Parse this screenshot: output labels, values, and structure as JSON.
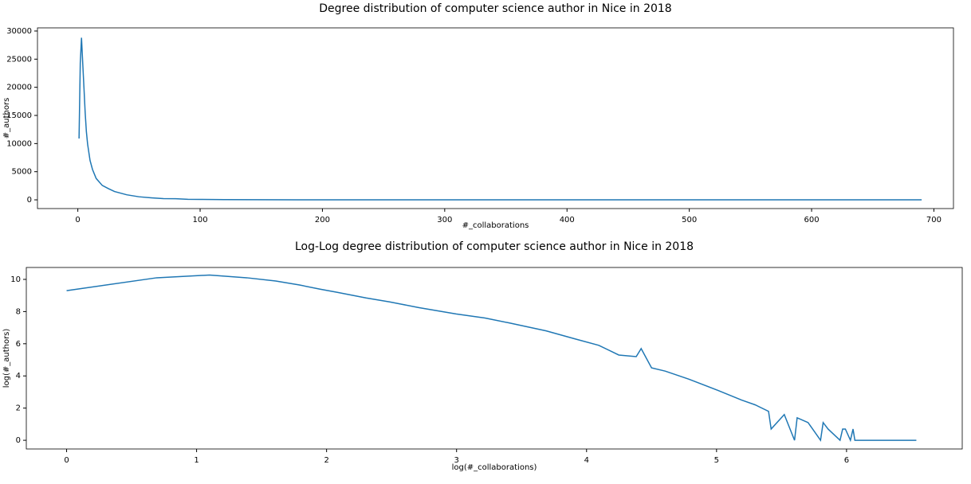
{
  "chart_data": [
    {
      "type": "line",
      "title": "Degree distribution of computer science author in Nice in 2018",
      "x_label": "#_collaborations",
      "y_label": "#_authors",
      "x": [
        1,
        2,
        3,
        4,
        5,
        6,
        7,
        8,
        10,
        12,
        15,
        20,
        25,
        30,
        40,
        50,
        60,
        70,
        80,
        90,
        100,
        120,
        150,
        180,
        200,
        250,
        300,
        350,
        400,
        430,
        450,
        500,
        550,
        600,
        690
      ],
      "series": [
        {
          "color": "#1f77b4",
          "values": [
            10900,
            24300,
            28800,
            24300,
            20000,
            15500,
            12100,
            9900,
            7000,
            5400,
            3800,
            2560,
            2000,
            1480,
            900,
            545,
            365,
            220,
            200,
            90,
            74,
            45,
            22,
            12,
            9,
            5,
            3,
            2,
            2,
            1,
            1,
            1,
            1,
            1,
            1
          ]
        }
      ],
      "xlim": [
        -33,
        716
      ],
      "ylim": [
        -1550,
        30560
      ],
      "xticks": [
        0,
        100,
        200,
        300,
        400,
        500,
        600,
        700
      ],
      "yticks": [
        0,
        5000,
        10000,
        15000,
        20000,
        25000,
        30000
      ]
    },
    {
      "type": "line",
      "title": "Log-Log degree distribution of computer science author in Nice in 2018",
      "x_label": "log(#_collaborations)",
      "y_label": "log(#_authors)",
      "x": [
        0,
        0.693,
        1.099,
        1.386,
        1.609,
        1.792,
        1.946,
        2.079,
        2.303,
        2.485,
        2.708,
        2.996,
        3.219,
        3.401,
        3.689,
        3.912,
        4.094,
        4.248,
        4.382,
        4.42,
        4.5,
        4.605,
        4.787,
        5.011,
        5.193,
        5.298,
        5.4,
        5.42,
        5.521,
        5.6,
        5.62,
        5.704,
        5.8,
        5.82,
        5.858,
        5.95,
        5.97,
        5.991,
        6.03,
        6.05,
        6.064,
        6.109,
        6.215,
        6.31,
        6.397,
        6.537
      ],
      "series": [
        {
          "color": "#1f77b4",
          "values": [
            9.3,
            10.1,
            10.27,
            10.1,
            9.9,
            9.65,
            9.4,
            9.2,
            8.85,
            8.6,
            8.25,
            7.85,
            7.6,
            7.3,
            6.8,
            6.3,
            5.9,
            5.3,
            5.2,
            5.7,
            4.5,
            4.3,
            3.8,
            3.1,
            2.5,
            2.2,
            1.8,
            0.7,
            1.6,
            0,
            1.4,
            1.1,
            0,
            1.1,
            0.7,
            0,
            0.7,
            0.7,
            0,
            0.7,
            0,
            0,
            0,
            0,
            0,
            0
          ]
        }
      ],
      "xlim": [
        -0.31,
        6.89
      ],
      "ylim": [
        -0.54,
        10.74
      ],
      "xticks": [
        0,
        1,
        2,
        3,
        4,
        5,
        6
      ],
      "yticks": [
        0,
        2,
        4,
        6,
        8,
        10
      ]
    }
  ]
}
